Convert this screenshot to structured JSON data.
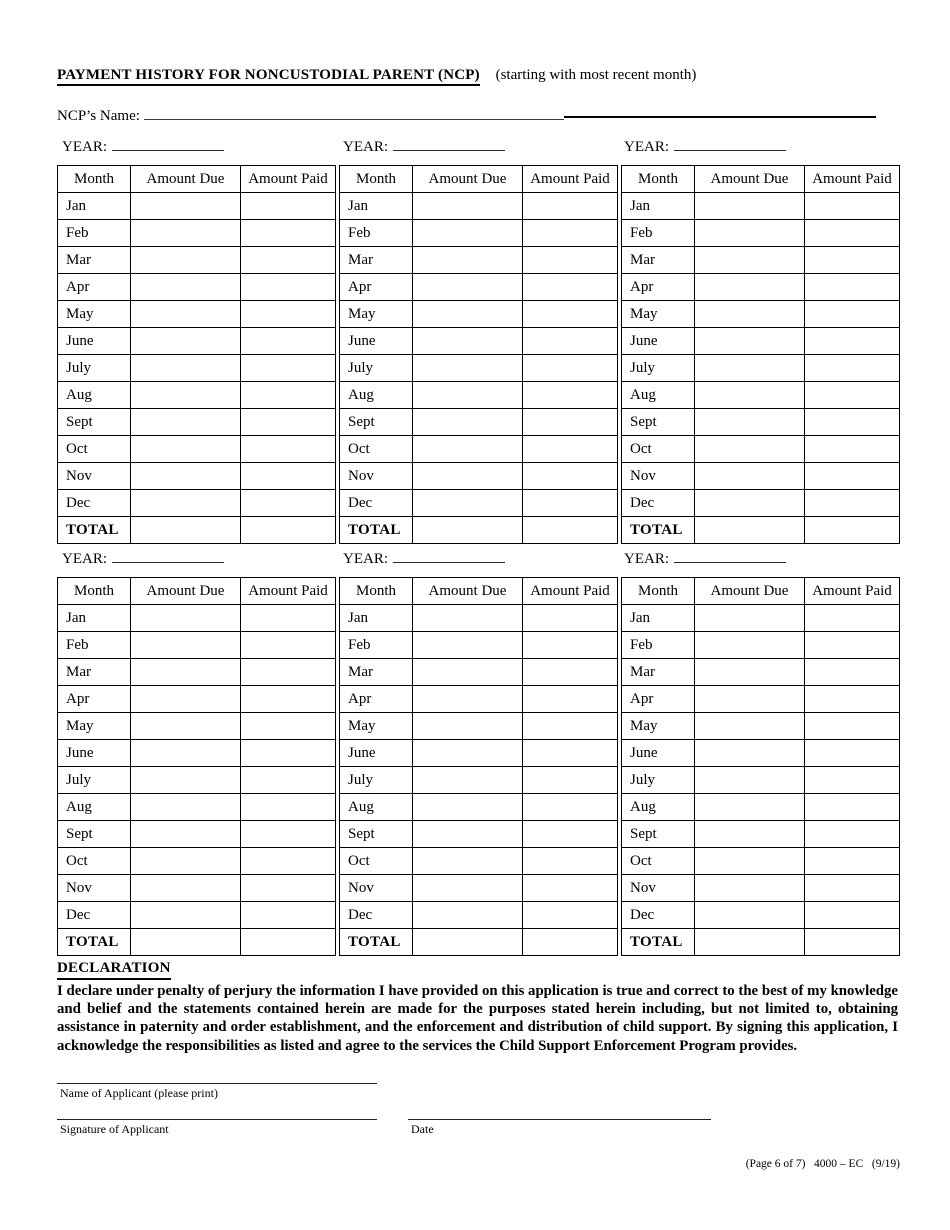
{
  "page": {
    "title": "PAYMENT HISTORY FOR NONCUSTODIAL PARENT (NCP)",
    "title_note": "(starting with most recent month)",
    "ncp_name_label": "NCP’s Name:",
    "footer": "(Page 6 of 7)   4000 – EC   (9/19)"
  },
  "payment_table": {
    "year_label": "YEAR:",
    "columns": [
      "Month",
      "Amount Due",
      "Amount Paid"
    ],
    "months": [
      "Jan",
      "Feb",
      "Mar",
      "Apr",
      "May",
      "June",
      "July",
      "Aug",
      "Sept",
      "Oct",
      "Nov",
      "Dec"
    ],
    "total_label": "TOTAL",
    "groups": 2,
    "tables_per_group": 3
  },
  "declaration": {
    "heading": "DECLARATION",
    "body": "I declare under penalty of perjury the information I have provided on this application is true and correct to the best of my knowledge and belief and the statements contained herein are made for the purposes stated herein including, but not limited to, obtaining assistance in paternity and order establishment, and the enforcement and distribution of child support.  By signing this application, I acknowledge the responsibilities as listed and agree to the services the Child Support Enforcement Program provides."
  },
  "signature_block": {
    "name_label": "Name of Applicant (please print)",
    "signature_label": "Signature of Applicant",
    "date_label": "Date"
  }
}
